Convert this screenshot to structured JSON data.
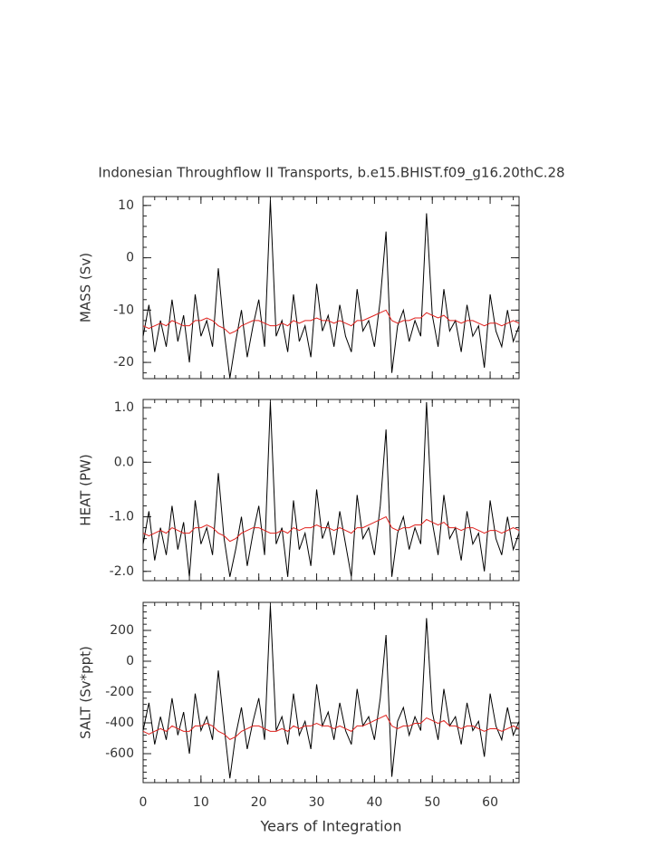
{
  "title": "Indonesian Throughflow II Transports, b.e15.BHIST.f09_g16.20thC.28",
  "chart_data": [
    {
      "type": "line",
      "y_label": "MASS (Sv)",
      "x": [
        0,
        1,
        2,
        3,
        4,
        5,
        6,
        7,
        8,
        9,
        10,
        11,
        12,
        13,
        14,
        15,
        16,
        17,
        18,
        19,
        20,
        21,
        22,
        23,
        24,
        25,
        26,
        27,
        28,
        29,
        30,
        31,
        32,
        33,
        34,
        35,
        36,
        37,
        38,
        39,
        40,
        41,
        42,
        43,
        44,
        45,
        46,
        47,
        48,
        49,
        50,
        51,
        52,
        53,
        54,
        55,
        56,
        57,
        58,
        59,
        60,
        61,
        62,
        63,
        64,
        65
      ],
      "xlim": [
        0,
        65
      ],
      "xticks": [
        0,
        10,
        20,
        30,
        40,
        50,
        60
      ],
      "ylim": [
        -23.1,
        11.7
      ],
      "yticks": [
        10,
        0,
        -10,
        -20
      ],
      "series": [
        {
          "color": "#000000",
          "values": [
            -15,
            -9,
            -18,
            -12,
            -17,
            -8,
            -16,
            -11,
            -20,
            -7,
            -15,
            -12,
            -17,
            -2,
            -14,
            -23,
            -16,
            -10,
            -19,
            -13,
            -8,
            -17,
            11,
            -15,
            -12,
            -18,
            -7,
            -16,
            -13,
            -19,
            -5,
            -14,
            -11,
            -17,
            -9,
            -15,
            -18,
            -6,
            -14,
            -12,
            -17,
            -8,
            5,
            -22,
            -13,
            -10,
            -16,
            -12,
            -15,
            8.5,
            -11,
            -17,
            -6,
            -14,
            -12,
            -18,
            -9,
            -15,
            -13,
            -21,
            -7,
            -14,
            -17,
            -10,
            -16,
            -13
          ]
        },
        {
          "color": "#e0201c",
          "values": [
            -13,
            -13.5,
            -13,
            -12.5,
            -13,
            -12,
            -12.5,
            -13,
            -13,
            -12,
            -12,
            -11.5,
            -12,
            -13,
            -13.5,
            -14.5,
            -14,
            -13,
            -12.5,
            -12,
            -12,
            -12.5,
            -13,
            -13,
            -12.5,
            -13,
            -12,
            -12.5,
            -12,
            -12,
            -11.5,
            -12,
            -12,
            -12.5,
            -12,
            -12.5,
            -13,
            -12,
            -12,
            -11.5,
            -11,
            -10.5,
            -10,
            -12,
            -12.5,
            -12,
            -12,
            -11.5,
            -11.5,
            -10.5,
            -11,
            -11.5,
            -11,
            -12,
            -12,
            -12.5,
            -12,
            -12,
            -12.5,
            -13,
            -12.5,
            -12.5,
            -13,
            -12.5,
            -12,
            -12.5
          ]
        }
      ]
    },
    {
      "type": "line",
      "y_label": "HEAT (PW)",
      "x": [
        0,
        1,
        2,
        3,
        4,
        5,
        6,
        7,
        8,
        9,
        10,
        11,
        12,
        13,
        14,
        15,
        16,
        17,
        18,
        19,
        20,
        21,
        22,
        23,
        24,
        25,
        26,
        27,
        28,
        29,
        30,
        31,
        32,
        33,
        34,
        35,
        36,
        37,
        38,
        39,
        40,
        41,
        42,
        43,
        44,
        45,
        46,
        47,
        48,
        49,
        50,
        51,
        52,
        53,
        54,
        55,
        56,
        57,
        58,
        59,
        60,
        61,
        62,
        63,
        64,
        65
      ],
      "xlim": [
        0,
        65
      ],
      "xticks": [
        0,
        10,
        20,
        30,
        40,
        50,
        60
      ],
      "ylim": [
        -2.17,
        1.15
      ],
      "yticks": [
        {
          "value": 1,
          "label": "1.0"
        },
        {
          "value": 0,
          "label": "0.0"
        },
        {
          "value": -1,
          "label": "-1.0"
        },
        {
          "value": -2,
          "label": "-2.0"
        }
      ],
      "series": [
        {
          "color": "#000000",
          "values": [
            -1.5,
            -0.9,
            -1.8,
            -1.2,
            -1.7,
            -0.8,
            -1.6,
            -1.1,
            -2.1,
            -0.7,
            -1.5,
            -1.2,
            -1.7,
            -0.2,
            -1.4,
            -2.1,
            -1.6,
            -1.0,
            -1.9,
            -1.3,
            -0.8,
            -1.7,
            1.1,
            -1.5,
            -1.2,
            -2.1,
            -0.7,
            -1.6,
            -1.3,
            -1.9,
            -0.5,
            -1.4,
            -1.1,
            -1.7,
            -0.9,
            -1.5,
            -2.1,
            -0.6,
            -1.4,
            -1.2,
            -1.7,
            -0.8,
            0.6,
            -2.1,
            -1.3,
            -1.0,
            -1.6,
            -1.2,
            -1.5,
            1.1,
            -1.1,
            -1.7,
            -0.6,
            -1.4,
            -1.2,
            -1.8,
            -0.9,
            -1.5,
            -1.3,
            -2.0,
            -0.7,
            -1.4,
            -1.7,
            -1.0,
            -1.6,
            -1.3
          ]
        },
        {
          "color": "#e0201c",
          "values": [
            -1.3,
            -1.35,
            -1.3,
            -1.25,
            -1.3,
            -1.2,
            -1.25,
            -1.3,
            -1.3,
            -1.2,
            -1.2,
            -1.15,
            -1.2,
            -1.3,
            -1.35,
            -1.45,
            -1.4,
            -1.3,
            -1.25,
            -1.2,
            -1.2,
            -1.25,
            -1.3,
            -1.3,
            -1.25,
            -1.3,
            -1.2,
            -1.25,
            -1.2,
            -1.2,
            -1.15,
            -1.2,
            -1.2,
            -1.25,
            -1.2,
            -1.25,
            -1.3,
            -1.2,
            -1.2,
            -1.15,
            -1.1,
            -1.05,
            -1.0,
            -1.2,
            -1.25,
            -1.2,
            -1.2,
            -1.15,
            -1.15,
            -1.05,
            -1.1,
            -1.15,
            -1.1,
            -1.2,
            -1.2,
            -1.25,
            -1.2,
            -1.2,
            -1.25,
            -1.3,
            -1.25,
            -1.25,
            -1.3,
            -1.25,
            -1.2,
            -1.25
          ]
        }
      ]
    },
    {
      "type": "line",
      "y_label": "SALT (Sv*ppt)",
      "x_label": "Years of Integration",
      "x": [
        0,
        1,
        2,
        3,
        4,
        5,
        6,
        7,
        8,
        9,
        10,
        11,
        12,
        13,
        14,
        15,
        16,
        17,
        18,
        19,
        20,
        21,
        22,
        23,
        24,
        25,
        26,
        27,
        28,
        29,
        30,
        31,
        32,
        33,
        34,
        35,
        36,
        37,
        38,
        39,
        40,
        41,
        42,
        43,
        44,
        45,
        46,
        47,
        48,
        49,
        50,
        51,
        52,
        53,
        54,
        55,
        56,
        57,
        58,
        59,
        60,
        61,
        62,
        63,
        64,
        65
      ],
      "xlim": [
        0,
        65
      ],
      "xticks": [
        0,
        10,
        20,
        30,
        40,
        50,
        60
      ],
      "ylim": [
        -788,
        382
      ],
      "yticks": [
        200,
        0,
        -200,
        -400,
        -600
      ],
      "series": [
        {
          "color": "#000000",
          "values": [
            -450,
            -270,
            -540,
            -360,
            -510,
            -240,
            -480,
            -330,
            -600,
            -210,
            -450,
            -360,
            -510,
            -60,
            -420,
            -760,
            -480,
            -300,
            -570,
            -390,
            -240,
            -510,
            360,
            -450,
            -360,
            -540,
            -210,
            -480,
            -390,
            -570,
            -150,
            -420,
            -330,
            -510,
            -270,
            -450,
            -540,
            -180,
            -420,
            -360,
            -510,
            -240,
            170,
            -750,
            -390,
            -300,
            -480,
            -360,
            -450,
            280,
            -330,
            -510,
            -180,
            -420,
            -360,
            -540,
            -270,
            -450,
            -390,
            -620,
            -210,
            -420,
            -510,
            -300,
            -480,
            -390
          ]
        },
        {
          "color": "#e0201c",
          "values": [
            -455,
            -473,
            -455,
            -438,
            -455,
            -420,
            -438,
            -455,
            -455,
            -420,
            -420,
            -403,
            -420,
            -455,
            -473,
            -508,
            -490,
            -455,
            -438,
            -420,
            -420,
            -438,
            -455,
            -455,
            -438,
            -455,
            -420,
            -438,
            -420,
            -420,
            -403,
            -420,
            -420,
            -438,
            -420,
            -438,
            -455,
            -420,
            -420,
            -403,
            -385,
            -368,
            -350,
            -420,
            -438,
            -420,
            -420,
            -403,
            -403,
            -368,
            -385,
            -403,
            -385,
            -420,
            -420,
            -438,
            -420,
            -420,
            -438,
            -455,
            -438,
            -438,
            -455,
            -438,
            -420,
            -438
          ]
        }
      ]
    }
  ]
}
